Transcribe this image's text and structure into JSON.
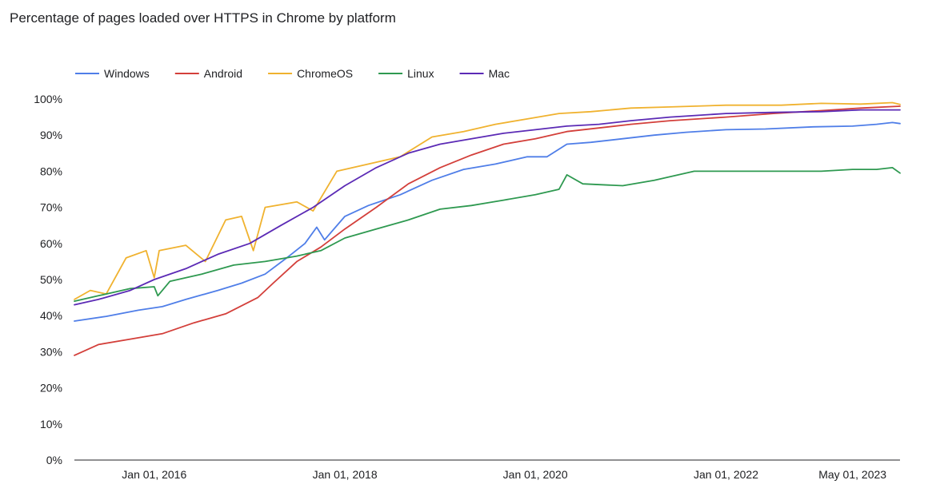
{
  "chart_data": {
    "type": "line",
    "title": "Percentage of pages loaded over HTTPS in Chrome by platform",
    "xlabel": "",
    "ylabel": "",
    "x_range": [
      "2015-03-01",
      "2023-10-30"
    ],
    "ylim": [
      0,
      100
    ],
    "y_ticks": [
      0,
      10,
      20,
      30,
      40,
      50,
      60,
      70,
      80,
      90,
      100
    ],
    "y_tick_labels": [
      "0%",
      "10%",
      "20%",
      "30%",
      "40%",
      "50%",
      "60%",
      "70%",
      "80%",
      "90%",
      "100%"
    ],
    "x_ticks": [
      "2016-01-01",
      "2018-01-01",
      "2020-01-01",
      "2022-01-01",
      "2023-05-01"
    ],
    "x_tick_labels": [
      "Jan 01, 2016",
      "Jan 01, 2018",
      "Jan 01, 2020",
      "Jan 01, 2022",
      "May 01, 2023"
    ],
    "legend_position": "top-left",
    "grid": false,
    "series": [
      {
        "name": "Windows",
        "color": "#4f7ee8",
        "points": [
          [
            "2015-03-01",
            38.5
          ],
          [
            "2015-07-01",
            39.8
          ],
          [
            "2015-11-01",
            41.5
          ],
          [
            "2016-02-01",
            42.5
          ],
          [
            "2016-05-01",
            44.5
          ],
          [
            "2016-09-01",
            47.0
          ],
          [
            "2016-12-01",
            49.0
          ],
          [
            "2017-03-01",
            51.5
          ],
          [
            "2017-06-01",
            56.5
          ],
          [
            "2017-08-01",
            60.0
          ],
          [
            "2017-09-15",
            64.5
          ],
          [
            "2017-10-15",
            61.0
          ],
          [
            "2018-01-01",
            67.5
          ],
          [
            "2018-04-01",
            70.5
          ],
          [
            "2018-08-01",
            73.5
          ],
          [
            "2018-12-01",
            77.5
          ],
          [
            "2019-04-01",
            80.5
          ],
          [
            "2019-08-01",
            82.0
          ],
          [
            "2019-12-01",
            84.0
          ],
          [
            "2020-02-15",
            84.0
          ],
          [
            "2020-05-01",
            87.5
          ],
          [
            "2020-08-01",
            88.0
          ],
          [
            "2020-12-01",
            89.0
          ],
          [
            "2021-04-01",
            90.0
          ],
          [
            "2021-08-01",
            90.8
          ],
          [
            "2022-01-01",
            91.5
          ],
          [
            "2022-06-01",
            91.7
          ],
          [
            "2022-12-01",
            92.3
          ],
          [
            "2023-05-01",
            92.5
          ],
          [
            "2023-08-01",
            93.0
          ],
          [
            "2023-10-01",
            93.5
          ],
          [
            "2023-10-30",
            93.2
          ]
        ]
      },
      {
        "name": "Android",
        "color": "#d33f3a",
        "points": [
          [
            "2015-03-01",
            29.0
          ],
          [
            "2015-06-01",
            32.0
          ],
          [
            "2015-10-01",
            33.5
          ],
          [
            "2016-02-01",
            35.0
          ],
          [
            "2016-06-01",
            38.0
          ],
          [
            "2016-10-01",
            40.5
          ],
          [
            "2017-02-01",
            45.0
          ],
          [
            "2017-04-01",
            49.0
          ],
          [
            "2017-07-01",
            55.0
          ],
          [
            "2017-10-01",
            59.0
          ],
          [
            "2018-01-01",
            64.0
          ],
          [
            "2018-05-01",
            70.0
          ],
          [
            "2018-09-01",
            76.5
          ],
          [
            "2019-01-01",
            81.0
          ],
          [
            "2019-05-01",
            84.5
          ],
          [
            "2019-09-01",
            87.5
          ],
          [
            "2020-01-01",
            89.0
          ],
          [
            "2020-05-01",
            91.0
          ],
          [
            "2020-09-01",
            92.0
          ],
          [
            "2021-01-01",
            93.0
          ],
          [
            "2021-06-01",
            94.0
          ],
          [
            "2022-01-01",
            95.0
          ],
          [
            "2022-07-01",
            96.0
          ],
          [
            "2023-01-01",
            96.8
          ],
          [
            "2023-06-01",
            97.5
          ],
          [
            "2023-10-30",
            98.0
          ]
        ]
      },
      {
        "name": "ChromeOS",
        "color": "#f0b22f",
        "points": [
          [
            "2015-03-01",
            44.5
          ],
          [
            "2015-05-01",
            47.0
          ],
          [
            "2015-07-01",
            46.0
          ],
          [
            "2015-09-15",
            56.0
          ],
          [
            "2015-12-01",
            58.0
          ],
          [
            "2016-01-01",
            50.5
          ],
          [
            "2016-01-20",
            58.0
          ],
          [
            "2016-05-01",
            59.5
          ],
          [
            "2016-07-15",
            55.0
          ],
          [
            "2016-10-01",
            66.5
          ],
          [
            "2016-12-01",
            67.5
          ],
          [
            "2017-01-15",
            58.0
          ],
          [
            "2017-03-01",
            70.0
          ],
          [
            "2017-07-01",
            71.5
          ],
          [
            "2017-09-01",
            69.0
          ],
          [
            "2017-12-01",
            80.0
          ],
          [
            "2018-04-01",
            82.0
          ],
          [
            "2018-08-01",
            84.0
          ],
          [
            "2018-12-01",
            89.5
          ],
          [
            "2019-04-01",
            91.0
          ],
          [
            "2019-08-01",
            93.0
          ],
          [
            "2019-12-01",
            94.5
          ],
          [
            "2020-04-01",
            96.0
          ],
          [
            "2020-08-01",
            96.5
          ],
          [
            "2021-01-01",
            97.5
          ],
          [
            "2021-06-01",
            97.8
          ],
          [
            "2022-01-01",
            98.3
          ],
          [
            "2022-08-01",
            98.3
          ],
          [
            "2023-01-01",
            98.8
          ],
          [
            "2023-06-01",
            98.6
          ],
          [
            "2023-10-01",
            99.0
          ],
          [
            "2023-10-30",
            98.5
          ]
        ]
      },
      {
        "name": "Linux",
        "color": "#2e9950",
        "points": [
          [
            "2015-03-01",
            44.0
          ],
          [
            "2015-06-01",
            45.5
          ],
          [
            "2015-10-01",
            47.5
          ],
          [
            "2016-01-01",
            48.0
          ],
          [
            "2016-01-15",
            45.5
          ],
          [
            "2016-03-01",
            49.5
          ],
          [
            "2016-07-01",
            51.5
          ],
          [
            "2016-11-01",
            54.0
          ],
          [
            "2017-03-01",
            55.0
          ],
          [
            "2017-07-01",
            56.5
          ],
          [
            "2017-10-01",
            58.0
          ],
          [
            "2018-01-01",
            61.5
          ],
          [
            "2018-05-01",
            64.0
          ],
          [
            "2018-09-01",
            66.5
          ],
          [
            "2019-01-01",
            69.5
          ],
          [
            "2019-05-01",
            70.5
          ],
          [
            "2019-09-01",
            72.0
          ],
          [
            "2020-01-01",
            73.5
          ],
          [
            "2020-04-01",
            75.0
          ],
          [
            "2020-05-01",
            79.0
          ],
          [
            "2020-07-01",
            76.5
          ],
          [
            "2020-12-01",
            76.0
          ],
          [
            "2021-04-01",
            77.5
          ],
          [
            "2021-09-01",
            80.0
          ],
          [
            "2022-01-01",
            80.0
          ],
          [
            "2022-06-01",
            80.0
          ],
          [
            "2023-01-01",
            80.0
          ],
          [
            "2023-05-01",
            80.5
          ],
          [
            "2023-08-01",
            80.5
          ],
          [
            "2023-10-01",
            81.0
          ],
          [
            "2023-10-30",
            79.5
          ]
        ]
      },
      {
        "name": "Mac",
        "color": "#5b2ab5",
        "points": [
          [
            "2015-03-01",
            43.0
          ],
          [
            "2015-06-01",
            44.5
          ],
          [
            "2015-10-01",
            47.0
          ],
          [
            "2016-01-01",
            50.0
          ],
          [
            "2016-05-01",
            53.0
          ],
          [
            "2016-09-01",
            57.0
          ],
          [
            "2017-01-01",
            60.0
          ],
          [
            "2017-05-01",
            65.0
          ],
          [
            "2017-09-01",
            70.0
          ],
          [
            "2018-01-01",
            76.0
          ],
          [
            "2018-05-01",
            81.0
          ],
          [
            "2018-09-01",
            85.0
          ],
          [
            "2019-01-01",
            87.5
          ],
          [
            "2019-05-01",
            89.0
          ],
          [
            "2019-09-01",
            90.5
          ],
          [
            "2020-01-01",
            91.5
          ],
          [
            "2020-05-01",
            92.5
          ],
          [
            "2020-09-01",
            93.0
          ],
          [
            "2021-01-01",
            94.0
          ],
          [
            "2021-06-01",
            95.0
          ],
          [
            "2022-01-01",
            96.0
          ],
          [
            "2022-07-01",
            96.3
          ],
          [
            "2023-01-01",
            96.5
          ],
          [
            "2023-06-01",
            97.0
          ],
          [
            "2023-10-30",
            97.0
          ]
        ]
      }
    ]
  }
}
